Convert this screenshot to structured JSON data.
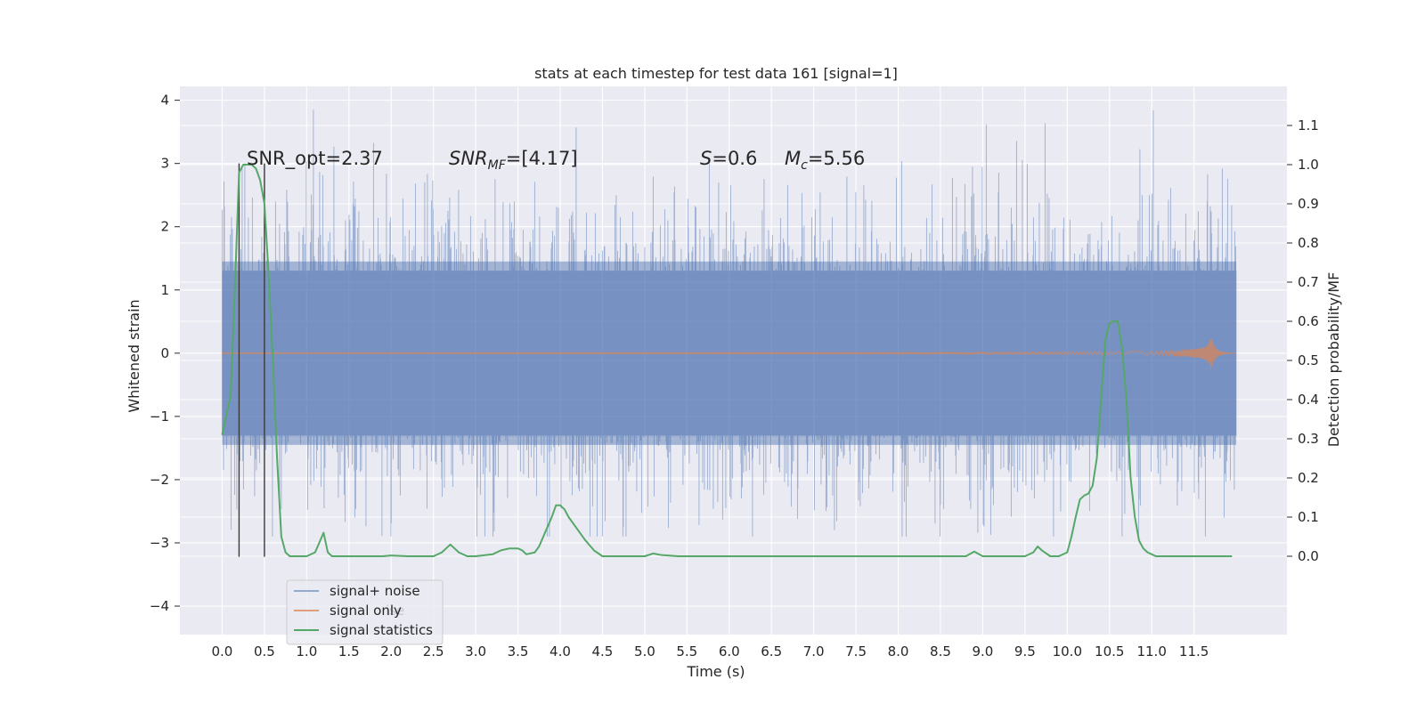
{
  "chart_data": {
    "type": "line",
    "title": "stats at each timestep for test data 161 [signal=1]",
    "xlabel": "Time (s)",
    "ylabel": "Whitened strain",
    "y2label": "Detection probability/MF",
    "xlim": [
      -0.5,
      12.6
    ],
    "ylim": [
      -4.45,
      4.22
    ],
    "y2lim": [
      -0.2,
      1.2
    ],
    "x_ticks": [
      0.0,
      0.5,
      1.0,
      1.5,
      2.0,
      2.5,
      3.0,
      3.5,
      4.0,
      4.5,
      5.0,
      5.5,
      6.0,
      6.5,
      7.0,
      7.5,
      8.0,
      8.5,
      9.0,
      9.5,
      10.0,
      10.5,
      11.0,
      11.5
    ],
    "x_tick_labels": [
      "0.0",
      "0.5",
      "1.0",
      "1.5",
      "2.0",
      "2.5",
      "3.0",
      "3.5",
      "4.0",
      "4.5",
      "5.0",
      "5.5",
      "6.0",
      "6.5",
      "7.0",
      "7.5",
      "8.0",
      "8.5",
      "9.0",
      "9.5",
      "10.0",
      "10.5",
      "11.0",
      "11.5"
    ],
    "y_ticks": [
      -4,
      -3,
      -2,
      -1,
      0,
      1,
      2,
      3,
      4
    ],
    "y_tick_labels": [
      "−4",
      "−3",
      "−2",
      "−1",
      "0",
      "1",
      "2",
      "3",
      "4"
    ],
    "y2_ticks": [
      0.0,
      0.1,
      0.2,
      0.3,
      0.4,
      0.5,
      0.6,
      0.7,
      0.8,
      0.9,
      1.0,
      1.1
    ],
    "y2_tick_labels": [
      "0.0",
      "0.1",
      "0.2",
      "0.3",
      "0.4",
      "0.5",
      "0.6",
      "0.7",
      "0.8",
      "0.9",
      "1.0",
      "1.1"
    ],
    "grid": true,
    "legend_position": "lower-left",
    "series": [
      {
        "name": "signal+ noise",
        "color": "#4c72b0",
        "alpha": 0.5,
        "x_range": [
          0.0,
          12.0
        ],
        "typical_amplitude": [
          -1.45,
          1.45
        ],
        "envelope": [
          -2.9,
          3.85
        ]
      },
      {
        "name": "signal only",
        "color": "#dd8452",
        "x_range": [
          0.0,
          12.0
        ],
        "chirp_peak_time": 11.7,
        "chirp_peak_amplitude": 0.27
      },
      {
        "name": "signal statistics",
        "color": "#55a868",
        "axis": "right",
        "x": [
          0.0,
          0.1,
          0.15,
          0.2,
          0.25,
          0.3,
          0.35,
          0.4,
          0.45,
          0.5,
          0.55,
          0.6,
          0.65,
          0.7,
          0.75,
          0.8,
          0.85,
          0.9,
          1.0,
          1.1,
          1.15,
          1.2,
          1.25,
          1.3,
          1.5,
          1.8,
          1.9,
          2.0,
          2.2,
          2.5,
          2.6,
          2.7,
          2.75,
          2.8,
          2.9,
          3.0,
          3.2,
          3.3,
          3.4,
          3.5,
          3.55,
          3.6,
          3.7,
          3.75,
          3.8,
          3.9,
          3.95,
          4.0,
          4.05,
          4.1,
          4.2,
          4.3,
          4.4,
          4.5,
          4.6,
          4.8,
          5.0,
          5.1,
          5.2,
          5.4,
          6.0,
          7.0,
          8.0,
          8.8,
          8.9,
          9.0,
          9.1,
          9.5,
          9.6,
          9.65,
          9.7,
          9.8,
          9.9,
          10.0,
          10.05,
          10.1,
          10.15,
          10.2,
          10.25,
          10.3,
          10.35,
          10.4,
          10.45,
          10.5,
          10.55,
          10.6,
          10.65,
          10.7,
          10.75,
          10.8,
          10.85,
          10.9,
          10.95,
          11.0,
          11.05,
          11.1,
          11.2,
          11.3,
          11.5,
          11.7,
          11.95
        ],
        "values": [
          0.31,
          0.41,
          0.68,
          0.98,
          1.0,
          1.0,
          1.0,
          0.99,
          0.96,
          0.9,
          0.72,
          0.5,
          0.25,
          0.05,
          0.01,
          0.0,
          0.0,
          0.0,
          0.0,
          0.01,
          0.035,
          0.06,
          0.01,
          0.0,
          0.0,
          0.0,
          0.0,
          0.002,
          0.0,
          0.0,
          0.01,
          0.03,
          0.02,
          0.01,
          0.0,
          0.0,
          0.005,
          0.015,
          0.02,
          0.02,
          0.015,
          0.005,
          0.01,
          0.025,
          0.05,
          0.1,
          0.13,
          0.13,
          0.12,
          0.1,
          0.07,
          0.04,
          0.015,
          0.0,
          0.0,
          0.0,
          0.0,
          0.007,
          0.003,
          0.0,
          0.0,
          0.0,
          0.0,
          0.0,
          0.012,
          0.0,
          0.0,
          0.0,
          0.01,
          0.025,
          0.015,
          0.0,
          0.0,
          0.01,
          0.05,
          0.1,
          0.145,
          0.155,
          0.16,
          0.18,
          0.25,
          0.4,
          0.55,
          0.595,
          0.6,
          0.6,
          0.53,
          0.4,
          0.2,
          0.1,
          0.04,
          0.02,
          0.01,
          0.005,
          0.0,
          0.0,
          0.0,
          0.0,
          0.0,
          0.0,
          0.0
        ]
      }
    ],
    "vlines": [
      {
        "x": 0.2,
        "y_range": [
          -3.22,
          3.0
        ],
        "color": "#3a3a3a"
      },
      {
        "x": 0.5,
        "y_range": [
          -3.22,
          3.0
        ],
        "color": "#3a3a3a"
      }
    ],
    "annotations": {
      "snr_opt": "SNR_opt=2.37",
      "snr_mf_main": "SNR",
      "snr_mf_sub": "MF",
      "snr_mf_rest": "=[4.17]",
      "s_symbol": "S",
      "s_value": "=0.6",
      "mc_symbol": "M",
      "mc_sub": "c",
      "mc_value": "=5.56"
    },
    "legend": {
      "entries": [
        "signal+ noise",
        "signal only",
        "signal statistics"
      ],
      "ghost_text": "ise"
    }
  }
}
